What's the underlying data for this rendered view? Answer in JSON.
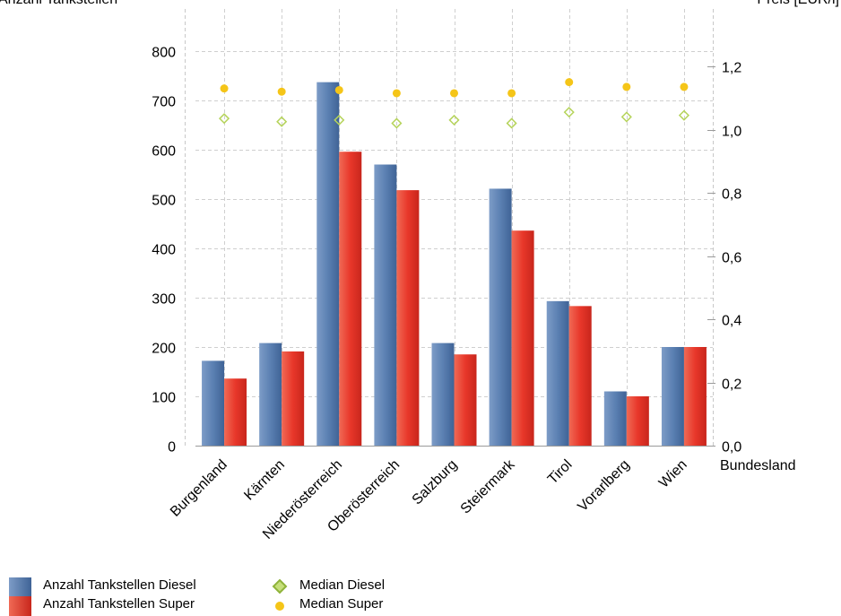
{
  "chart_data": {
    "type": "bar",
    "title": "",
    "y_left_label": "Anzahl Tankstellen",
    "y_right_label": "Preis [EUR/l]",
    "x_label": "Bundesland",
    "categories": [
      "Burgenland",
      "Kärnten",
      "Niederösterreich",
      "Oberösterreich",
      "Salzburg",
      "Steiermark",
      "Tirol",
      "Vorarlberg",
      "Wien"
    ],
    "y_left_ticks": [
      "0",
      "100",
      "200",
      "300",
      "400",
      "500",
      "600",
      "700",
      "800"
    ],
    "y_left_range": [
      0,
      800
    ],
    "y_right_ticks": [
      "0,0",
      "0,2",
      "0,4",
      "0,6",
      "0,8",
      "1,0",
      "1,2"
    ],
    "y_right_range": [
      0,
      1.2
    ],
    "grid": true,
    "legend_position": "bottom-left",
    "series": [
      {
        "name": "Anzahl Tankstellen Diesel",
        "type": "bar",
        "axis": "left",
        "color": "#5b80b2",
        "values": [
          172,
          208,
          737,
          570,
          208,
          521,
          293,
          110,
          200
        ]
      },
      {
        "name": "Anzahl Tankstellen Super",
        "type": "bar",
        "axis": "left",
        "color": "#e8372a",
        "values": [
          136,
          191,
          596,
          518,
          185,
          436,
          283,
          100,
          200
        ]
      },
      {
        "name": "Median Diesel",
        "type": "scatter",
        "axis": "right",
        "marker": "diamond",
        "color": "#a8c94a",
        "values": [
          1.035,
          1.025,
          1.03,
          1.02,
          1.03,
          1.02,
          1.055,
          1.04,
          1.045
        ]
      },
      {
        "name": "Median Super",
        "type": "scatter",
        "axis": "right",
        "marker": "circle",
        "color": "#f5c518",
        "values": [
          1.13,
          1.12,
          1.125,
          1.115,
          1.115,
          1.115,
          1.15,
          1.135,
          1.135
        ]
      }
    ]
  }
}
